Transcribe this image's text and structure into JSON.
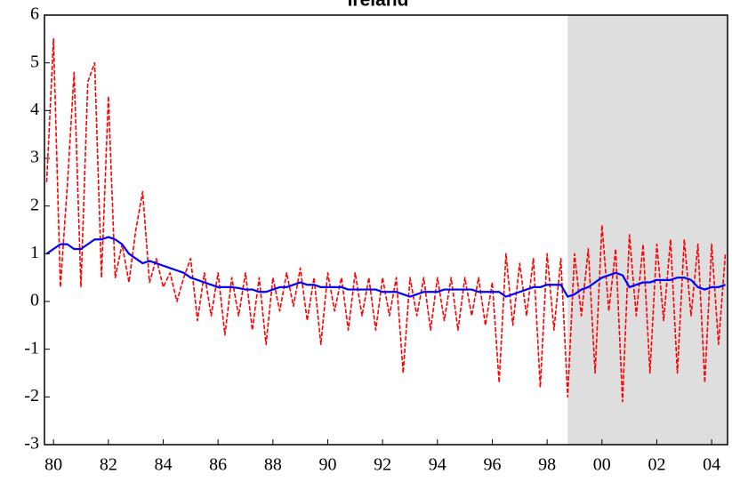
{
  "chart_data": {
    "type": "line",
    "title": "Ireland",
    "x": [
      1979.75,
      1980,
      1980.25,
      1980.5,
      1980.75,
      1981,
      1981.25,
      1981.5,
      1981.75,
      1982,
      1982.25,
      1982.5,
      1982.75,
      1983,
      1983.25,
      1983.5,
      1983.75,
      1984,
      1984.25,
      1984.5,
      1984.75,
      1985,
      1985.25,
      1985.5,
      1985.75,
      1986,
      1986.25,
      1986.5,
      1986.75,
      1987,
      1987.25,
      1987.5,
      1987.75,
      1988,
      1988.25,
      1988.5,
      1988.75,
      1989,
      1989.25,
      1989.5,
      1989.75,
      1990,
      1990.25,
      1990.5,
      1990.75,
      1991,
      1991.25,
      1991.5,
      1991.75,
      1992,
      1992.25,
      1992.5,
      1992.75,
      1993,
      1993.25,
      1993.5,
      1993.75,
      1994,
      1994.25,
      1994.5,
      1994.75,
      1995,
      1995.25,
      1995.5,
      1995.75,
      1996,
      1996.25,
      1996.5,
      1996.75,
      1997,
      1997.25,
      1997.5,
      1997.75,
      1998,
      1998.25,
      1998.5,
      1998.75,
      1999,
      1999.25,
      1999.5,
      1999.75,
      2000,
      2000.25,
      2000.5,
      2000.75,
      2001,
      2001.25,
      2001.5,
      2001.75,
      2002,
      2002.25,
      2002.5,
      2002.75,
      2003,
      2003.25,
      2003.5,
      2003.75,
      2004,
      2004.25,
      2004.5
    ],
    "series": [
      {
        "color": "#ff0000",
        "style": "dashed",
        "values": [
          2.5,
          5.5,
          0.3,
          2.4,
          4.8,
          0.3,
          4.6,
          5.0,
          0.5,
          4.3,
          0.5,
          1.2,
          0.4,
          1.5,
          2.3,
          0.4,
          0.9,
          0.3,
          0.6,
          0.0,
          0.5,
          0.9,
          -0.4,
          0.6,
          -0.3,
          0.6,
          -0.7,
          0.5,
          -0.3,
          0.6,
          -0.6,
          0.5,
          -0.9,
          0.5,
          -0.2,
          0.6,
          -0.1,
          0.7,
          -0.4,
          0.5,
          -0.9,
          0.6,
          -0.2,
          0.5,
          -0.6,
          0.6,
          -0.3,
          0.5,
          -0.6,
          0.5,
          -0.3,
          0.5,
          -1.5,
          0.5,
          -0.3,
          0.5,
          -0.6,
          0.5,
          -0.4,
          0.5,
          -0.6,
          0.5,
          -0.3,
          0.5,
          -0.5,
          0.4,
          -1.7,
          1.0,
          -0.5,
          0.8,
          -0.3,
          0.9,
          -1.8,
          1.0,
          -0.6,
          0.9,
          -2.0,
          1.0,
          -0.3,
          1.1,
          -1.5,
          1.6,
          -0.2,
          1.1,
          -2.1,
          1.4,
          -0.3,
          1.2,
          -1.5,
          1.2,
          -0.4,
          1.3,
          -1.5,
          1.3,
          -0.3,
          1.2,
          -1.7,
          1.2,
          -0.9,
          1.0
        ]
      },
      {
        "color": "#0000ff",
        "style": "solid",
        "values": [
          1.0,
          1.1,
          1.2,
          1.2,
          1.1,
          1.1,
          1.2,
          1.3,
          1.3,
          1.35,
          1.3,
          1.2,
          1.0,
          0.9,
          0.8,
          0.85,
          0.8,
          0.75,
          0.7,
          0.65,
          0.6,
          0.5,
          0.45,
          0.4,
          0.35,
          0.3,
          0.3,
          0.3,
          0.28,
          0.25,
          0.25,
          0.2,
          0.2,
          0.25,
          0.3,
          0.3,
          0.35,
          0.4,
          0.35,
          0.35,
          0.3,
          0.3,
          0.3,
          0.3,
          0.25,
          0.25,
          0.25,
          0.25,
          0.25,
          0.2,
          0.2,
          0.2,
          0.15,
          0.1,
          0.15,
          0.2,
          0.2,
          0.2,
          0.25,
          0.25,
          0.25,
          0.25,
          0.25,
          0.2,
          0.2,
          0.2,
          0.2,
          0.1,
          0.15,
          0.2,
          0.25,
          0.3,
          0.3,
          0.35,
          0.35,
          0.35,
          0.1,
          0.15,
          0.25,
          0.3,
          0.4,
          0.5,
          0.55,
          0.6,
          0.55,
          0.3,
          0.35,
          0.4,
          0.4,
          0.45,
          0.45,
          0.45,
          0.5,
          0.5,
          0.45,
          0.3,
          0.25,
          0.3,
          0.3,
          0.35
        ]
      }
    ],
    "shaded_region": {
      "from": 1998.75,
      "to": 2004.58,
      "color": "#dedede"
    },
    "xlim": [
      1979.67,
      2004.58
    ],
    "xticks": [
      {
        "value": 1980,
        "label": "80"
      },
      {
        "value": 1982,
        "label": "82"
      },
      {
        "value": 1984,
        "label": "84"
      },
      {
        "value": 1986,
        "label": "86"
      },
      {
        "value": 1988,
        "label": "88"
      },
      {
        "value": 1990,
        "label": "90"
      },
      {
        "value": 1992,
        "label": "92"
      },
      {
        "value": 1994,
        "label": "94"
      },
      {
        "value": 1996,
        "label": "96"
      },
      {
        "value": 1998,
        "label": "98"
      },
      {
        "value": 2000,
        "label": "00"
      },
      {
        "value": 2002,
        "label": "02"
      },
      {
        "value": 2004,
        "label": "04"
      }
    ],
    "ylim": [
      -3,
      6
    ],
    "yticks": [
      -3,
      -2,
      -1,
      0,
      1,
      2,
      3,
      4,
      5,
      6
    ],
    "grid": false
  }
}
